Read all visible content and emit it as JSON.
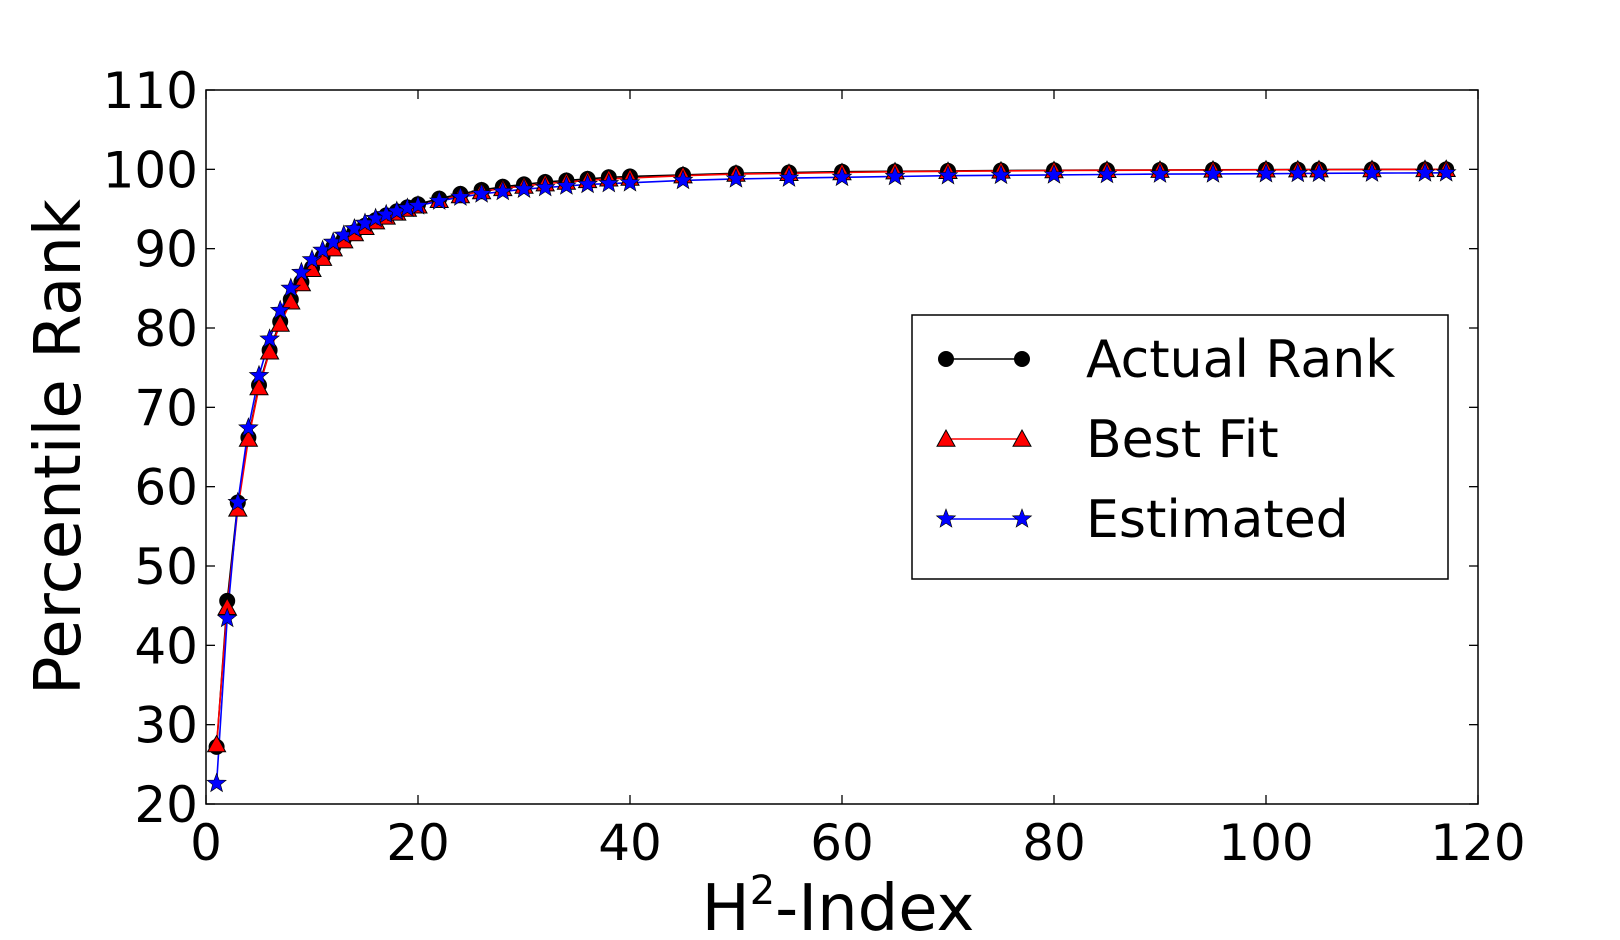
{
  "chart_data": {
    "type": "line",
    "xlabel": {
      "main": "H",
      "sup": "2",
      "rest": "-Index"
    },
    "ylabel": "Percentile Rank",
    "xlim": [
      0,
      120
    ],
    "ylim": [
      20,
      110
    ],
    "xticks": [
      "0",
      "20",
      "40",
      "60",
      "80",
      "100",
      "120"
    ],
    "yticks": [
      "20",
      "30",
      "40",
      "50",
      "60",
      "70",
      "80",
      "90",
      "100",
      "110"
    ],
    "grid": false,
    "legend_position": "center-right",
    "series": [
      {
        "name": "Actual Rank",
        "color": "#000000",
        "marker": "circle",
        "x": [
          1,
          2,
          3,
          4,
          5,
          6,
          7,
          8,
          9,
          10,
          11,
          12,
          13,
          14,
          15,
          16,
          17,
          18,
          19,
          20,
          22,
          24,
          26,
          28,
          30,
          32,
          34,
          36,
          38,
          40,
          45,
          50,
          55,
          60,
          65,
          70,
          75,
          80,
          85,
          90,
          95,
          100,
          103,
          105,
          110,
          115,
          117
        ],
        "y": [
          27.2,
          45.6,
          58.0,
          66.2,
          72.8,
          77.2,
          80.8,
          83.6,
          85.8,
          87.6,
          89.0,
          90.2,
          91.2,
          92.1,
          92.9,
          93.6,
          94.2,
          94.7,
          95.2,
          95.6,
          96.3,
          96.9,
          97.4,
          97.8,
          98.1,
          98.4,
          98.6,
          98.8,
          99.0,
          99.1,
          99.3,
          99.5,
          99.6,
          99.7,
          99.75,
          99.8,
          99.85,
          99.88,
          99.9,
          99.92,
          99.94,
          99.96,
          99.97,
          99.98,
          99.99,
          100.0,
          100.0
        ]
      },
      {
        "name": "Best Fit",
        "color": "#ff0000",
        "marker": "triangle",
        "x": [
          1,
          2,
          3,
          4,
          5,
          6,
          7,
          8,
          9,
          10,
          11,
          12,
          13,
          14,
          15,
          16,
          17,
          18,
          19,
          20,
          22,
          24,
          26,
          28,
          30,
          32,
          34,
          36,
          38,
          40,
          45,
          50,
          55,
          60,
          65,
          70,
          75,
          80,
          85,
          90,
          95,
          100,
          103,
          105,
          110,
          115,
          117
        ],
        "y": [
          27.5,
          44.8,
          57.2,
          66.0,
          72.5,
          77.0,
          80.5,
          83.3,
          85.6,
          87.4,
          88.8,
          90.0,
          91.0,
          91.9,
          92.7,
          93.4,
          94.0,
          94.5,
          95.0,
          95.4,
          96.1,
          96.7,
          97.2,
          97.6,
          97.9,
          98.2,
          98.4,
          98.6,
          98.8,
          98.9,
          99.2,
          99.4,
          99.5,
          99.6,
          99.7,
          99.75,
          99.8,
          99.85,
          99.88,
          99.9,
          99.92,
          99.94,
          99.95,
          99.96,
          99.98,
          99.99,
          100.0
        ]
      },
      {
        "name": "Estimated",
        "color": "#0000ff",
        "marker": "star",
        "x": [
          1,
          2,
          3,
          4,
          5,
          6,
          7,
          8,
          9,
          10,
          11,
          12,
          13,
          14,
          15,
          16,
          17,
          18,
          19,
          20,
          22,
          24,
          26,
          28,
          30,
          32,
          34,
          36,
          38,
          40,
          45,
          50,
          55,
          60,
          65,
          70,
          75,
          80,
          85,
          90,
          95,
          100,
          103,
          105,
          110,
          115,
          117
        ],
        "y": [
          22.6,
          43.4,
          58.0,
          67.4,
          74.0,
          78.6,
          82.2,
          85.0,
          87.0,
          88.6,
          89.8,
          90.8,
          91.7,
          92.5,
          93.2,
          93.8,
          94.3,
          94.7,
          95.1,
          95.4,
          96.0,
          96.5,
          96.9,
          97.2,
          97.5,
          97.7,
          97.9,
          98.1,
          98.2,
          98.3,
          98.6,
          98.8,
          98.9,
          99.0,
          99.1,
          99.2,
          99.25,
          99.3,
          99.35,
          99.4,
          99.42,
          99.45,
          99.47,
          99.5,
          99.52,
          99.55,
          99.56
        ]
      }
    ]
  }
}
